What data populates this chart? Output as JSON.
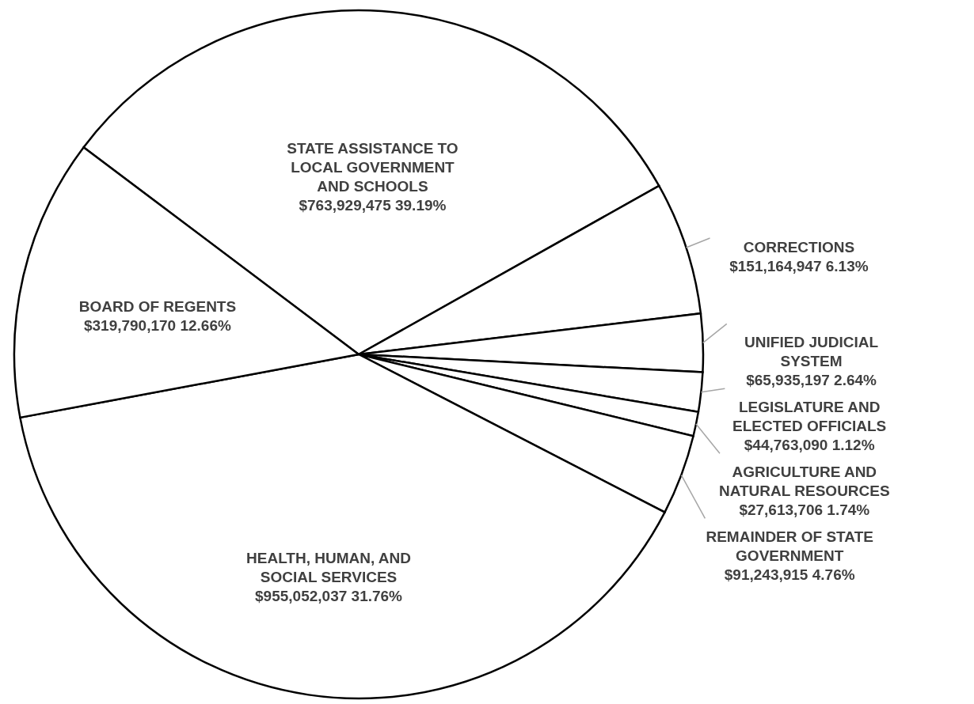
{
  "chart_data": {
    "type": "pie",
    "categories": [
      "STATE ASSISTANCE TO LOCAL GOVERNMENT AND SCHOOLS",
      "CORRECTIONS",
      "UNIFIED JUDICIAL SYSTEM",
      "LEGISLATURE AND ELECTED OFFICIALS",
      "AGRICULTURE AND NATURAL RESOURCES",
      "REMAINDER OF STATE GOVERNMENT",
      "HEALTH, HUMAN, AND SOCIAL SERVICES",
      "BOARD OF REGENTS"
    ],
    "values": [
      763929475,
      151164947,
      65935197,
      44763090,
      27613706,
      91243915,
      955052037,
      319790170
    ],
    "colors": [
      "#ffffff",
      "#ffffff",
      "#ffffff",
      "#ffffff",
      "#ffffff",
      "#ffffff",
      "#ffffff",
      "#ffffff"
    ],
    "value_labels": [
      "$763,929,475  39.19%",
      "$151,164,947  6.13%",
      "$65,935,197  2.64%",
      "$44,763,090  1.12%",
      "$27,613,706  1.74%",
      "$91,243,915  4.76%",
      "$955,052,037  31.76%",
      "$319,790,170  12.66%"
    ]
  }
}
